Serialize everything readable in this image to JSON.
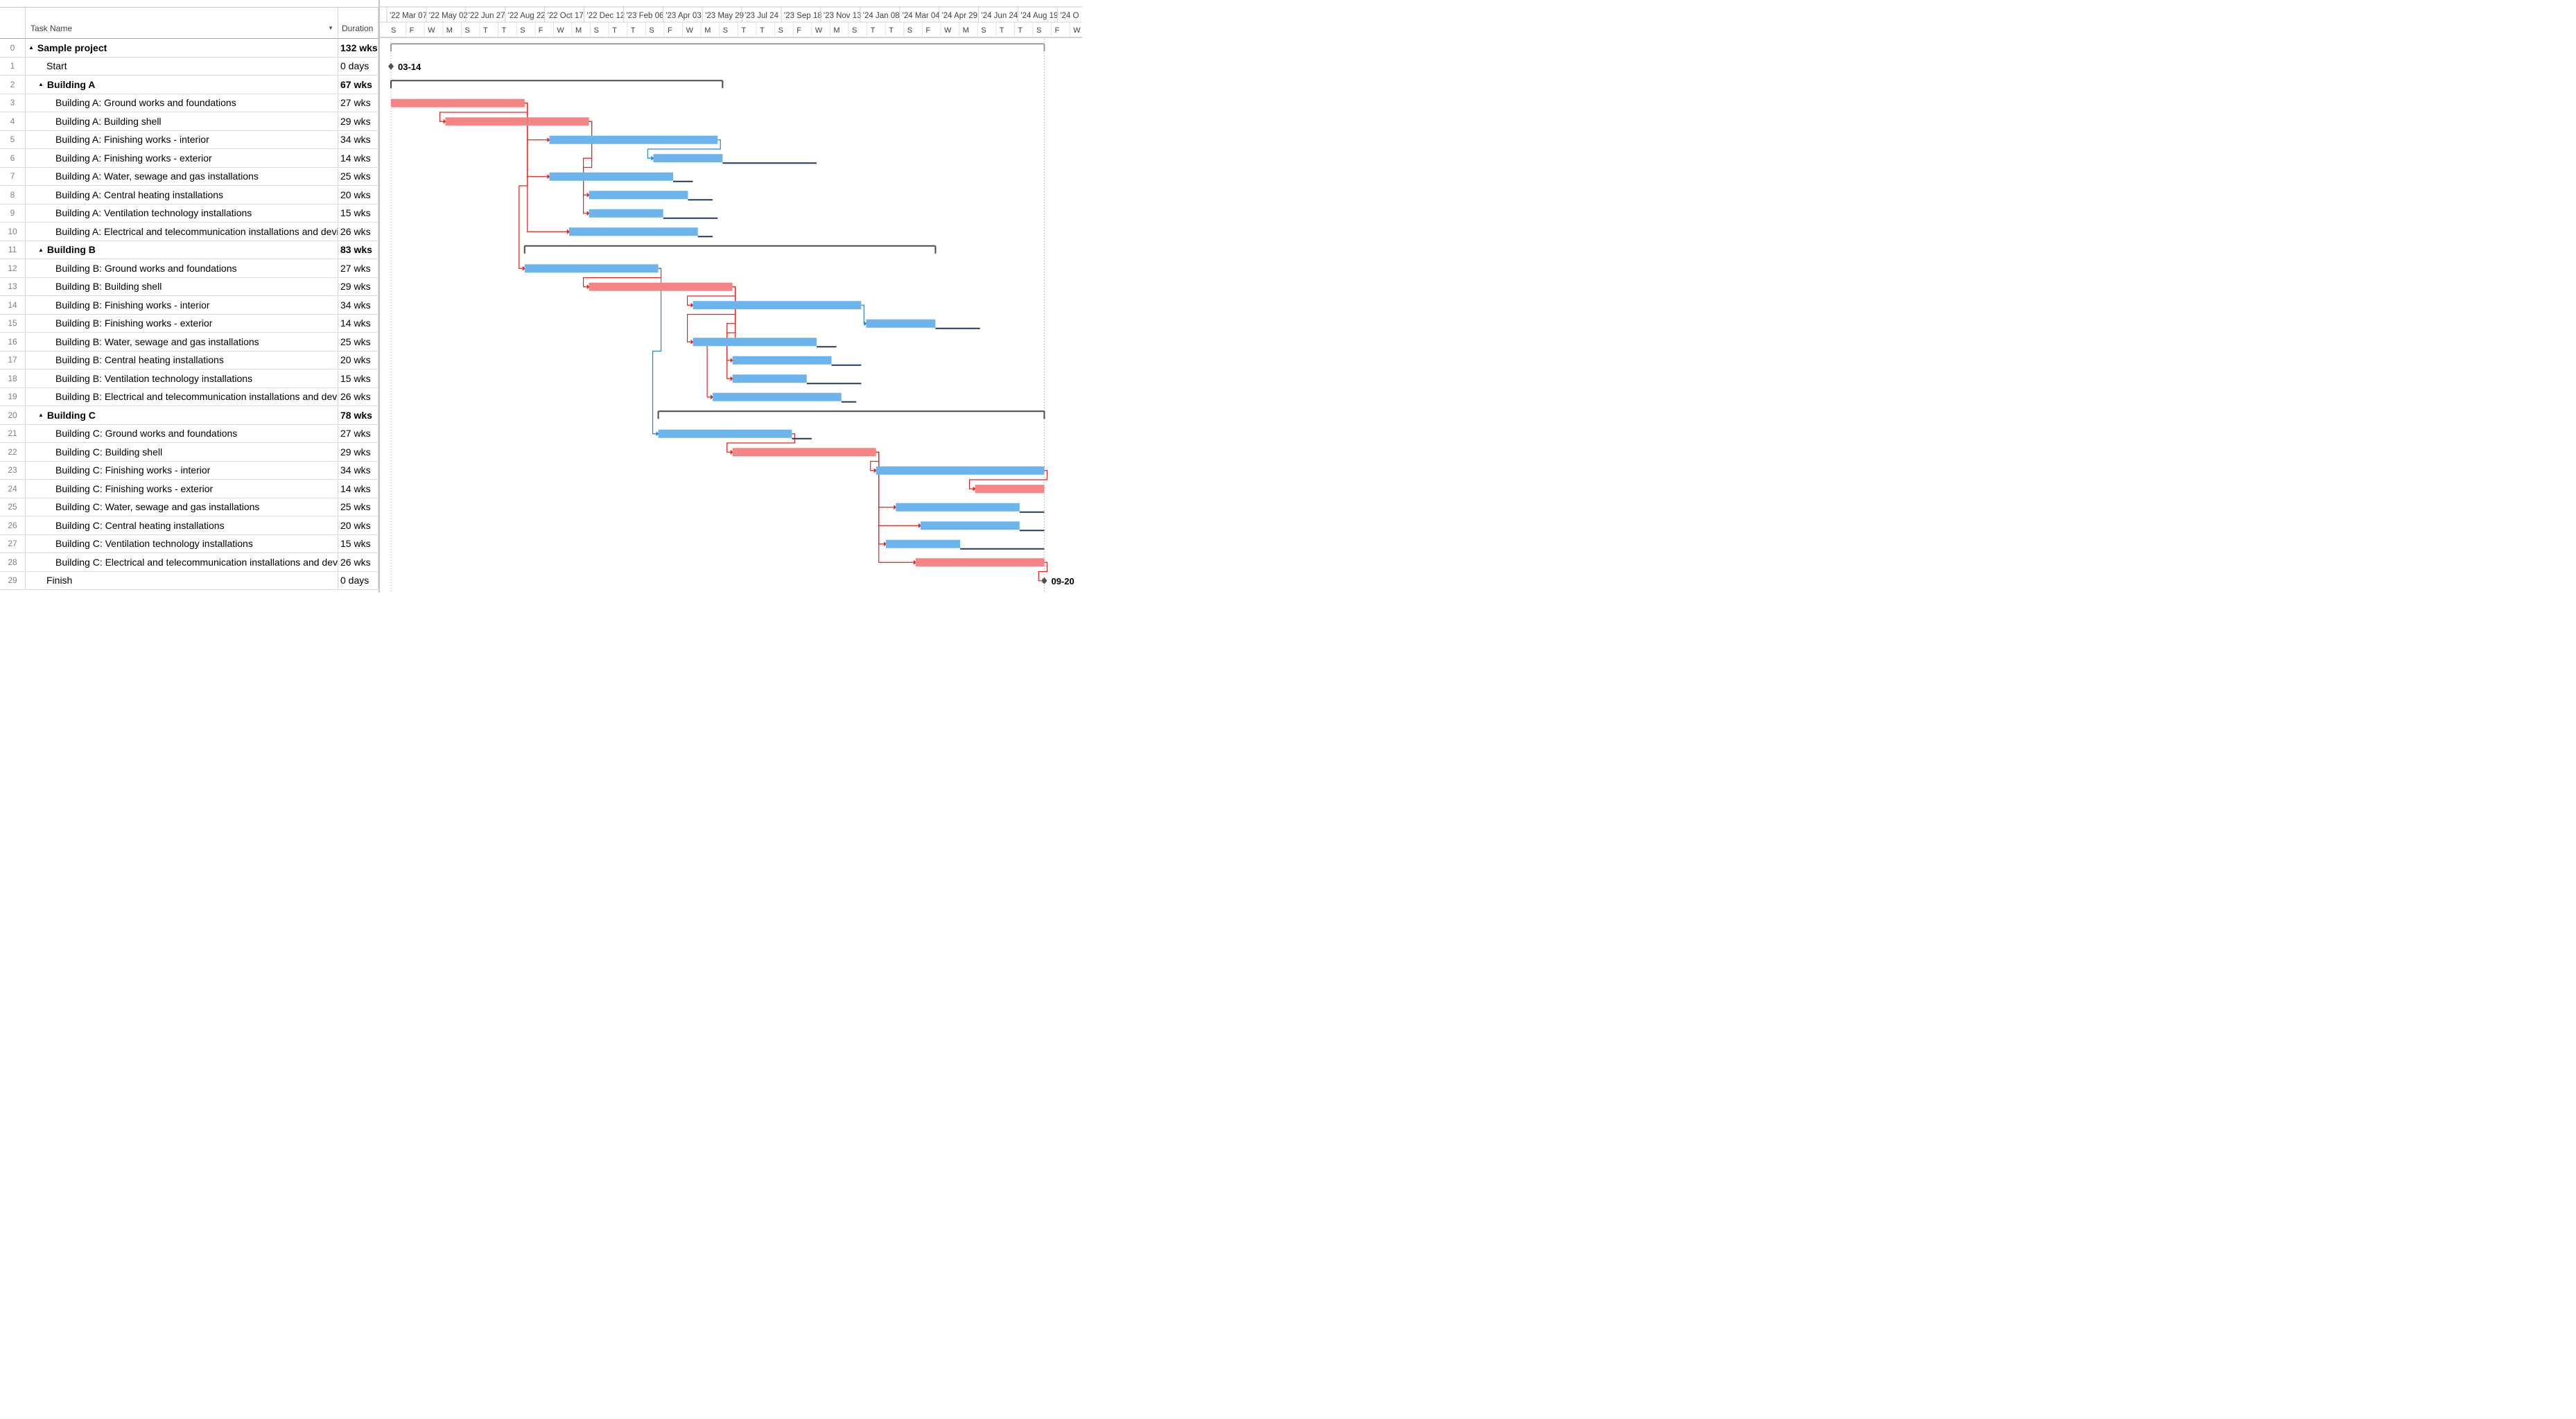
{
  "header": {
    "task_name": "Task Name",
    "duration": "Duration",
    "sort_icon": "dropdown-arrow-icon"
  },
  "colors": {
    "critical": "#f58585",
    "normal": "#6cb4ec",
    "summary": "#4a4a4a",
    "slack": "#1f3864",
    "critical_link": "#e8211d",
    "normal_link": "#2680d8"
  },
  "timescale": {
    "top": [
      "'22 Mar 07",
      "'22 May 02",
      "'22 Jun 27",
      "'22 Aug 22",
      "'22 Oct 17",
      "'22 Dec 12",
      "'23 Feb 06",
      "'23 Apr 03",
      "'23 May 29",
      "'23 Jul 24",
      "'23 Sep 18",
      "'23 Nov 13",
      "'24 Jan 08",
      "'24 Mar 04",
      "'24 Apr 29",
      "'24 Jun 24",
      "'24 Aug 19",
      "'24 O"
    ],
    "bottom": [
      "S",
      "F",
      "W",
      "M",
      "S",
      "T",
      "T",
      "S",
      "F",
      "W",
      "M",
      "S",
      "T",
      "T",
      "S",
      "F",
      "W",
      "M",
      "S",
      "T",
      "T",
      "S",
      "F",
      "W",
      "M",
      "S",
      "T",
      "T",
      "S",
      "F",
      "W",
      "M",
      "S",
      "T",
      "T",
      "S",
      "F",
      "W"
    ]
  },
  "tasks": [
    {
      "id": "0",
      "name": "Sample project",
      "duration": "132 wks",
      "summary": true,
      "level": 0,
      "start": 0,
      "finish": 132,
      "collapse": "▲"
    },
    {
      "id": "1",
      "name": "Start",
      "duration": "0 days",
      "level": 1,
      "milestone": true,
      "start": 0,
      "label": "03-14"
    },
    {
      "id": "2",
      "name": "Building A",
      "duration": "67 wks",
      "summary": true,
      "level": 1,
      "start": 0,
      "finish": 67,
      "collapse": "▲"
    },
    {
      "id": "3",
      "name": "Building A: Ground works and foundations",
      "duration": "27 wks",
      "level": 2,
      "start": 0,
      "finish": 27,
      "critical": true
    },
    {
      "id": "4",
      "name": "Building A: Building shell",
      "duration": "29 wks",
      "level": 2,
      "start": 11,
      "finish": 40,
      "critical": true,
      "pred": [
        "3"
      ]
    },
    {
      "id": "5",
      "name": "Building  A: Finishing works - interior",
      "duration": "34 wks",
      "level": 2,
      "start": 32,
      "finish": 66,
      "pred": [
        "3"
      ]
    },
    {
      "id": "6",
      "name": "Building  A: Finishing works - exterior",
      "duration": "14 wks",
      "level": 2,
      "start": 53,
      "finish": 67,
      "slack": 86,
      "pred": [
        "5"
      ]
    },
    {
      "id": "7",
      "name": "Building  A: Water, sewage and gas installations",
      "duration": "25 wks",
      "level": 2,
      "start": 32,
      "finish": 57,
      "slack": 61,
      "pred": [
        "3"
      ]
    },
    {
      "id": "8",
      "name": "Building  A: Central heating installations",
      "duration": "20 wks",
      "level": 2,
      "start": 40,
      "finish": 60,
      "slack": 65,
      "pred": [
        "4"
      ]
    },
    {
      "id": "9",
      "name": "Building  A: Ventilation technology installations",
      "duration": "15 wks",
      "level": 2,
      "start": 40,
      "finish": 55,
      "slack": 66,
      "pred": [
        "4"
      ]
    },
    {
      "id": "10",
      "name": "Building  A: Electrical and telecommunication installations and devices",
      "duration": "26 wks",
      "level": 2,
      "start": 36,
      "finish": 62,
      "slack": 65,
      "pred": [
        "3"
      ]
    },
    {
      "id": "11",
      "name": "Building  B",
      "duration": "83 wks",
      "summary": true,
      "level": 1,
      "start": 27,
      "finish": 110,
      "collapse": "▲"
    },
    {
      "id": "12",
      "name": "Building  B: Ground works and foundations",
      "duration": "27 wks",
      "level": 2,
      "start": 27,
      "finish": 54,
      "pred": [
        "3"
      ]
    },
    {
      "id": "13",
      "name": "Building  B: Building shell",
      "duration": "29 wks",
      "level": 2,
      "start": 40,
      "finish": 69,
      "critical": true,
      "pred": [
        "12"
      ]
    },
    {
      "id": "14",
      "name": "Building  B: Finishing works - interior",
      "duration": "34 wks",
      "level": 2,
      "start": 61,
      "finish": 95,
      "pred": [
        "13"
      ]
    },
    {
      "id": "15",
      "name": "Building  B: Finishing works - exterior",
      "duration": "14 wks",
      "level": 2,
      "start": 96,
      "finish": 110,
      "slack": 119,
      "pred": [
        "14"
      ]
    },
    {
      "id": "16",
      "name": "Building  B: Water, sewage and gas installations",
      "duration": "25 wks",
      "level": 2,
      "start": 61,
      "finish": 86,
      "slack": 90,
      "pred": [
        "13"
      ]
    },
    {
      "id": "17",
      "name": "Building  B: Central heating installations",
      "duration": "20 wks",
      "level": 2,
      "start": 69,
      "finish": 89,
      "slack": 95,
      "pred": [
        "13"
      ]
    },
    {
      "id": "18",
      "name": "Building  B: Ventilation technology installations",
      "duration": "15 wks",
      "level": 2,
      "start": 69,
      "finish": 84,
      "slack": 95,
      "pred": [
        "13"
      ]
    },
    {
      "id": "19",
      "name": "Building  B: Electrical and telecommunication installations and devices",
      "duration": "26 wks",
      "level": 2,
      "start": 65,
      "finish": 91,
      "slack": 94,
      "pred": [
        "13"
      ]
    },
    {
      "id": "20",
      "name": "Building  C",
      "duration": "78 wks",
      "summary": true,
      "level": 1,
      "start": 54,
      "finish": 132,
      "collapse": "▲"
    },
    {
      "id": "21",
      "name": "Building  C: Ground works and foundations",
      "duration": "27 wks",
      "level": 2,
      "start": 54,
      "finish": 81,
      "slack": 85,
      "pred": [
        "12"
      ]
    },
    {
      "id": "22",
      "name": "Building  C: Building shell",
      "duration": "29 wks",
      "level": 2,
      "start": 69,
      "finish": 98,
      "critical": true,
      "pred": [
        "21"
      ]
    },
    {
      "id": "23",
      "name": "Building  C: Finishing works - interior",
      "duration": "34 wks",
      "level": 2,
      "start": 98,
      "finish": 132,
      "pred": [
        "22"
      ]
    },
    {
      "id": "24",
      "name": "Building  C: Finishing works - exterior",
      "duration": "14 wks",
      "level": 2,
      "start": 118,
      "finish": 132,
      "critical": true,
      "pred": [
        "23"
      ]
    },
    {
      "id": "25",
      "name": "Building  C: Water, sewage and gas installations",
      "duration": "25 wks",
      "level": 2,
      "start": 102,
      "finish": 127,
      "slack": 132,
      "pred": [
        "22"
      ]
    },
    {
      "id": "26",
      "name": "Building  C: Central heating installations",
      "duration": "20 wks",
      "level": 2,
      "start": 107,
      "finish": 127,
      "slack": 132,
      "pred": [
        "22"
      ]
    },
    {
      "id": "27",
      "name": "Building  C: Ventilation technology installations",
      "duration": "15 wks",
      "level": 2,
      "start": 100,
      "finish": 115,
      "slack": 132,
      "pred": [
        "22"
      ]
    },
    {
      "id": "28",
      "name": "Building  C: Electrical and telecommunication installations and devices",
      "duration": "26 wks",
      "level": 2,
      "start": 106,
      "finish": 132,
      "critical": true,
      "pred": [
        "22"
      ]
    },
    {
      "id": "29",
      "name": "Finish",
      "duration": "0 days",
      "level": 1,
      "milestone": true,
      "start": 132,
      "label": "09-20",
      "pred": [
        "28"
      ]
    }
  ]
}
